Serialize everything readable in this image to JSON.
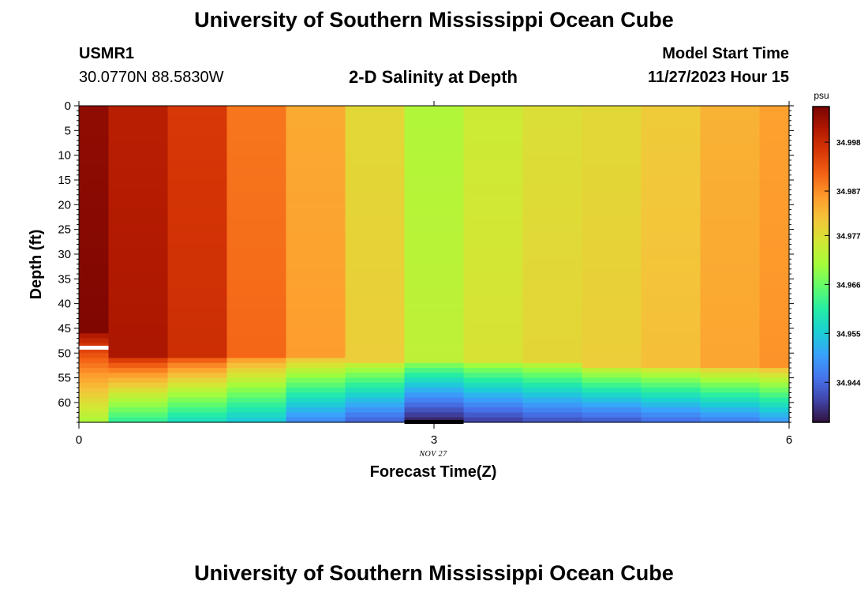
{
  "header": {
    "title": "University of Southern Mississippi Ocean Cube",
    "station_id": "USMR1",
    "coordinates": "30.0770N  88.5830W",
    "subtitle": "2-D Salinity at Depth",
    "model_start_label": "Model Start Time",
    "model_start_value": "11/27/2023 Hour 15"
  },
  "footer": {
    "title": "University of Southern Mississippi Ocean Cube"
  },
  "chart_data": {
    "type": "heatmap",
    "title": "2-D Salinity at Depth",
    "xlabel": "Forecast Time(Z)",
    "ylabel": "Depth (ft)",
    "x_ticks": [
      "0",
      "3",
      "6"
    ],
    "x_sublabel": "NOV 27",
    "y_ticks": [
      "0",
      "5",
      "10",
      "15",
      "20",
      "25",
      "30",
      "35",
      "40",
      "45",
      "50",
      "55",
      "60"
    ],
    "xlim": [
      0,
      6
    ],
    "ylim": [
      64,
      0
    ],
    "y_inverted": true,
    "colorbar": {
      "unit": "psu",
      "ticks": [
        "34.998",
        "34.987",
        "34.977",
        "34.966",
        "34.955",
        "34.944"
      ],
      "tick_values": [
        34.998,
        34.987,
        34.977,
        34.966,
        34.955,
        34.944
      ],
      "range": [
        34.935,
        35.006
      ],
      "colors": [
        "#30123b",
        "#4145ab",
        "#4675ed",
        "#39a2fc",
        "#1bcfd4",
        "#24eca6",
        "#61fc6c",
        "#a4fc3b",
        "#d1e834",
        "#f3c63a",
        "#fe9b2d",
        "#f36315",
        "#d93806",
        "#b11901",
        "#7a0402"
      ]
    },
    "columns": [
      {
        "x0": 0.0,
        "x1": 0.25,
        "upper": 35.004,
        "bottom": 34.972,
        "start": 46
      },
      {
        "x0": 0.25,
        "x1": 0.75,
        "upper": 35.0,
        "bottom": 34.962,
        "start": 51
      },
      {
        "x0": 0.75,
        "x1": 1.25,
        "upper": 34.996,
        "bottom": 34.958,
        "start": 51
      },
      {
        "x0": 1.25,
        "x1": 1.75,
        "upper": 34.989,
        "bottom": 34.955,
        "start": 51
      },
      {
        "x0": 1.75,
        "x1": 2.25,
        "upper": 34.984,
        "bottom": 34.948,
        "start": 51
      },
      {
        "x0": 2.25,
        "x1": 2.75,
        "upper": 34.978,
        "bottom": 34.944,
        "start": 52
      },
      {
        "x0": 2.75,
        "x1": 3.25,
        "upper": 34.972,
        "bottom": 34.937,
        "start": 52
      },
      {
        "x0": 3.25,
        "x1": 3.75,
        "upper": 34.975,
        "bottom": 34.94,
        "start": 52
      },
      {
        "x0": 3.75,
        "x1": 4.25,
        "upper": 34.977,
        "bottom": 34.942,
        "start": 52
      },
      {
        "x0": 4.25,
        "x1": 4.75,
        "upper": 34.978,
        "bottom": 34.943,
        "start": 53
      },
      {
        "x0": 4.75,
        "x1": 5.25,
        "upper": 34.98,
        "bottom": 34.945,
        "start": 53
      },
      {
        "x0": 5.25,
        "x1": 5.75,
        "upper": 34.983,
        "bottom": 34.947,
        "start": 53
      },
      {
        "x0": 5.75,
        "x1": 6.0,
        "upper": 34.985,
        "bottom": 34.95,
        "start": 53
      }
    ],
    "annotations": [
      {
        "type": "white-bar",
        "x0": 0.0,
        "x1": 0.25,
        "depth": 49
      },
      {
        "type": "black-bar",
        "x0": 2.75,
        "x1": 3.25,
        "depth": 64
      }
    ]
  }
}
